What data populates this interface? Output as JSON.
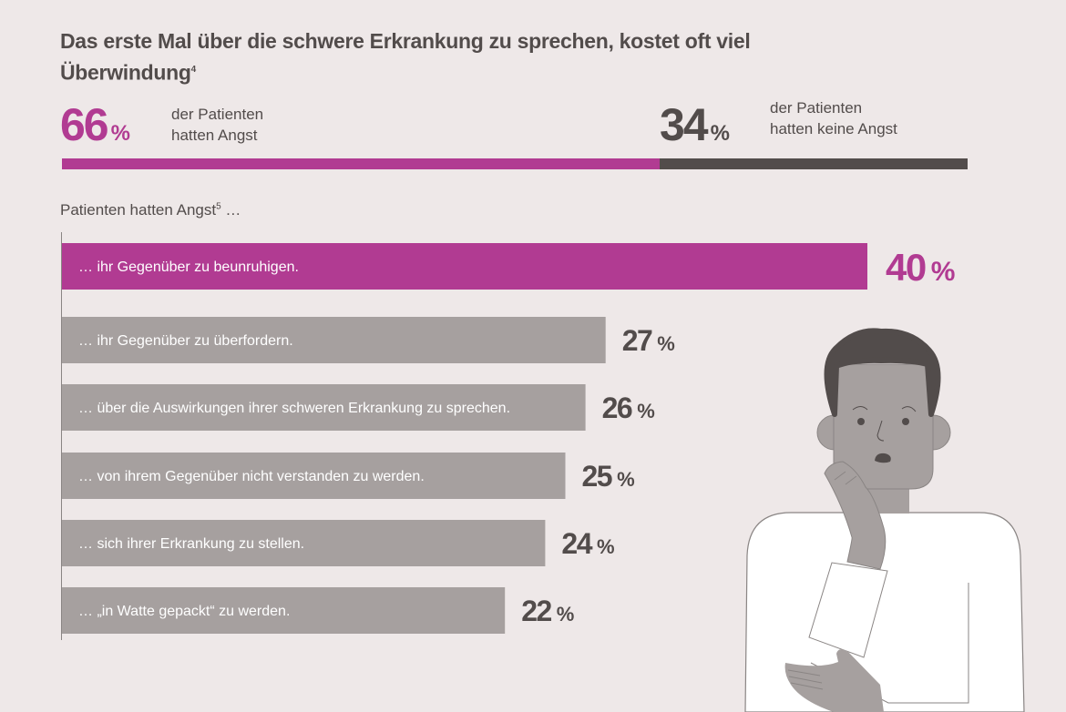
{
  "title": "Das erste Mal über die schwere Erkrankung zu sprechen, kostet oft viel Überwindung",
  "title_footnote": "4",
  "summary": {
    "left": {
      "value": "66",
      "unit": "%",
      "line1": "der Patienten",
      "line2": "hatten Angst"
    },
    "right": {
      "value": "34",
      "unit": "%",
      "line1": "der Patienten",
      "line2": "hatten keine Angst"
    }
  },
  "subtitle": "Patienten hatten Angst",
  "subtitle_footnote": "5",
  "subtitle_suffix": " …",
  "colors": {
    "accent": "#b13b92",
    "bar": "#a6a09f",
    "dark": "#524c4b",
    "background": "#eee8e8"
  },
  "chart_data": [
    {
      "type": "bar",
      "orientation": "horizontal",
      "categories": [
        "der Patienten hatten Angst",
        "der Patienten hatten keine Angst"
      ],
      "values": [
        66,
        34
      ],
      "stacked": true
    },
    {
      "type": "bar",
      "orientation": "horizontal",
      "categories": [
        "… ihr Gegenüber zu beunruhigen.",
        "… ihr Gegenüber zu überfordern.",
        "… über die Auswirkungen ihrer schweren Erkrankung zu sprechen.",
        "… von ihrem Gegenüber nicht verstanden zu werden.",
        "… sich ihrer Erkrankung zu stellen.",
        "… „in Watte gepackt“ zu werden."
      ],
      "values": [
        40,
        27,
        26,
        25,
        24,
        22
      ],
      "labels": [
        "40",
        "27",
        "26",
        "25",
        "24",
        "22"
      ],
      "unit": "%",
      "highlight_index": 0
    }
  ]
}
